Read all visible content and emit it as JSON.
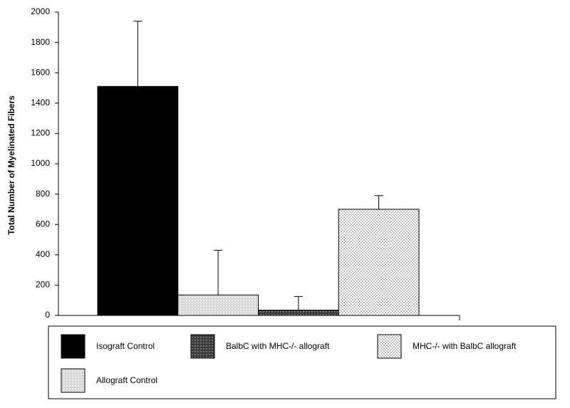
{
  "chart_data": {
    "type": "bar",
    "y_label": "Total Number of  Myelinated Fibers",
    "ylim": [
      0,
      2000
    ],
    "yticks": [
      0,
      200,
      400,
      600,
      800,
      1000,
      1200,
      1400,
      1600,
      1800,
      2000
    ],
    "error_bars": "up",
    "series": [
      {
        "name": "Isograft Control",
        "color": "#000000",
        "pattern": "solid",
        "values": [
          1510
        ],
        "errors": [
          430
        ]
      },
      {
        "name": "Allograft Control",
        "color": "#d8d8d8",
        "pattern": "dots",
        "values": [
          135
        ],
        "errors": [
          295
        ]
      },
      {
        "name": "BalbC with MHC-/- allograft",
        "color": "#3a3a3a",
        "pattern": "dots",
        "values": [
          35
        ],
        "errors": [
          90
        ]
      },
      {
        "name": "MHC-/- with BalbC allograft",
        "color": "#c4c4c4",
        "pattern": "checker",
        "values": [
          700
        ],
        "errors": [
          90
        ]
      }
    ]
  }
}
